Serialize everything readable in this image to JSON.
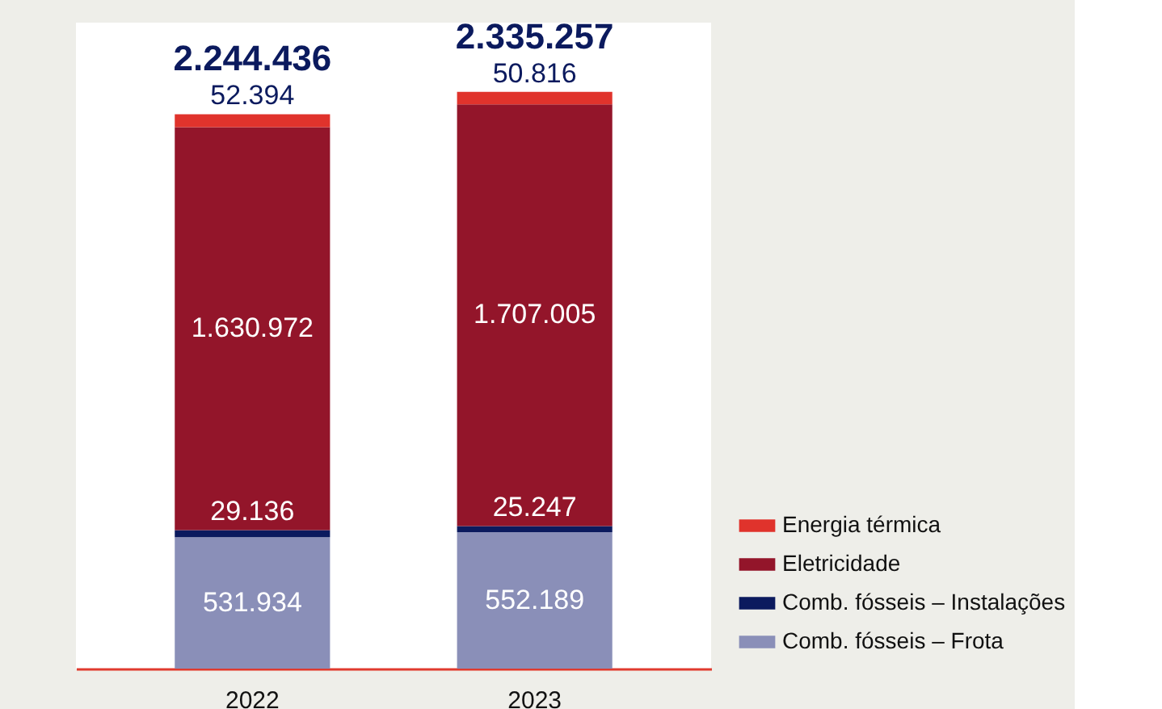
{
  "chart_data": {
    "type": "bar",
    "stacked": true,
    "categories": [
      "2022",
      "2023"
    ],
    "series": [
      {
        "name": "Comb. fósseis – Frota",
        "color": "#8a8fb8",
        "values": [
          531934,
          552189
        ],
        "value_labels": [
          "531.934",
          "552.189"
        ]
      },
      {
        "name": "Comb. fósseis – Instalações",
        "color": "#0b1a5e",
        "values": [
          29136,
          25247
        ],
        "value_labels": [
          "29.136",
          "25.247"
        ]
      },
      {
        "name": "Eletricidade",
        "color": "#93152a",
        "values": [
          1630972,
          1707005
        ],
        "value_labels": [
          "1.630.972",
          "1.707.005"
        ]
      },
      {
        "name": "Energia térmica",
        "color": "#e0332c",
        "values": [
          52394,
          50816
        ],
        "value_labels": [
          "52.394",
          "50.816"
        ]
      }
    ],
    "totals": [
      "2.244.436",
      "2.335.257"
    ],
    "legend": "bottom right",
    "grid": false
  }
}
